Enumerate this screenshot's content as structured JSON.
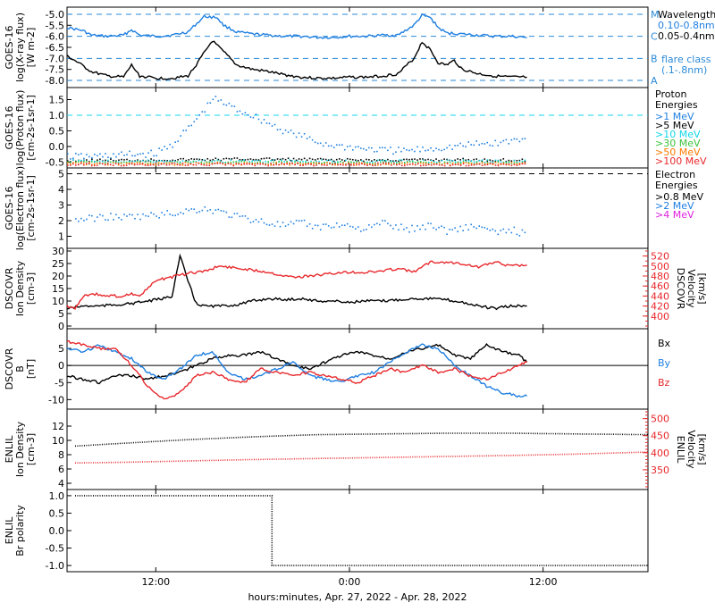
{
  "colors": {
    "black": "#000000",
    "blue": "#1f7fe0",
    "cyan": "#12d6e8",
    "green": "#3cc23c",
    "yellow": "#d7c400",
    "orange": "#ff7a00",
    "red": "#e8282c",
    "magenta": "#e020e0",
    "dashed_blue": "#2a8ad8"
  },
  "x_axis": {
    "label": "hours:minutes, Apr. 27, 2022 - Apr. 28, 2022",
    "ticks": [
      "12:00",
      "0:00",
      "12:00"
    ],
    "range_hours": [
      6.5,
      42.5
    ],
    "tick_hours": [
      12,
      24,
      36
    ]
  },
  "chart_data": [
    {
      "type": "line",
      "panel": "xray",
      "ylabel_lines": [
        "GOES-16",
        "log(X-ray flux)",
        "[W m-2]"
      ],
      "ylim": [
        -8.2,
        -4.8
      ],
      "ytick_labels": [
        "-5.0",
        "-5.5",
        "-6.0",
        "-6.5",
        "-7.0",
        "-7.5",
        "-8.0"
      ],
      "ytick_values": [
        -5.0,
        -5.5,
        -6.0,
        -6.5,
        -7.0,
        -7.5,
        -8.0
      ],
      "flare_levels": [
        {
          "label": "M",
          "value": -5.0
        },
        {
          "label": "C",
          "value": -6.0
        },
        {
          "label": "B",
          "value": -7.0
        },
        {
          "label": "A",
          "value": -8.0
        }
      ],
      "legend_title": "Wavelength",
      "legend_extra": [
        "flare class",
        "(.1-.8nm)"
      ],
      "series": [
        {
          "name": "0.10-0.8nm",
          "color_key": "blue",
          "x": [
            6.5,
            7.5,
            8.0,
            9.0,
            10.0,
            10.5,
            11.0,
            12.0,
            13.0,
            14.0,
            15.0,
            15.8,
            16.2,
            17.0,
            18.0,
            19.0,
            20.0,
            21.0,
            22.0,
            23.0,
            24.0,
            25.0,
            26.0,
            27.0,
            28.0,
            28.5,
            29.0,
            29.5,
            30.0,
            31.0,
            32.0,
            33.0,
            34.0,
            35.0
          ],
          "y": [
            -5.6,
            -5.75,
            -5.95,
            -6.0,
            -5.95,
            -5.7,
            -5.95,
            -6.0,
            -5.95,
            -5.8,
            -5.1,
            -5.15,
            -5.5,
            -5.8,
            -5.9,
            -5.95,
            -6.0,
            -6.0,
            -6.05,
            -6.05,
            -6.0,
            -6.0,
            -5.95,
            -5.95,
            -5.5,
            -5.05,
            -5.15,
            -5.6,
            -5.85,
            -5.9,
            -5.95,
            -6.0,
            -6.0,
            -6.05
          ]
        },
        {
          "name": "0.05-0.4nm",
          "color_key": "black",
          "x": [
            6.5,
            7.0,
            8.0,
            9.0,
            10.0,
            10.5,
            11.0,
            12.0,
            13.0,
            14.0,
            14.5,
            15.5,
            16.2,
            17.0,
            18.0,
            19.0,
            20.0,
            21.0,
            22.0,
            23.0,
            24.0,
            25.0,
            26.0,
            27.0,
            28.0,
            28.5,
            29.0,
            29.5,
            30.0,
            30.5,
            31.0,
            32.0,
            33.0,
            34.0,
            35.0
          ],
          "y": [
            -6.9,
            -7.1,
            -7.6,
            -7.8,
            -7.85,
            -7.3,
            -7.8,
            -7.9,
            -7.9,
            -7.8,
            -7.3,
            -6.2,
            -6.7,
            -7.3,
            -7.5,
            -7.6,
            -7.75,
            -7.85,
            -7.9,
            -7.9,
            -7.85,
            -7.85,
            -7.8,
            -7.7,
            -7.0,
            -6.25,
            -6.6,
            -7.2,
            -7.3,
            -7.1,
            -7.5,
            -7.7,
            -7.8,
            -7.85,
            -7.85
          ]
        }
      ]
    },
    {
      "type": "scatter",
      "panel": "proton",
      "ylabel_lines": [
        "GOES-16",
        "log(Proton flux)",
        "[cm-2s-1sr-1]"
      ],
      "ylim": [
        -0.6,
        1.8
      ],
      "ytick_labels": [
        "1.5",
        "1.0",
        "0.5",
        "0.0",
        "-0.5"
      ],
      "ytick_values": [
        1.5,
        1.0,
        0.5,
        0.0,
        -0.5
      ],
      "dashed_level": 1.0,
      "legend_title_lines": [
        "Proton",
        "Energies"
      ],
      "series": [
        {
          "name": ">1 MeV",
          "color_key": "blue",
          "x": [
            6.5,
            8,
            10,
            12,
            13,
            14,
            15,
            15.5,
            16,
            17,
            18,
            19,
            20,
            21,
            22,
            23,
            24,
            25,
            26,
            27,
            28,
            29,
            30,
            31,
            32,
            33,
            34,
            35
          ],
          "y": [
            -0.3,
            -0.3,
            -0.25,
            -0.2,
            0.1,
            0.6,
            1.2,
            1.55,
            1.45,
            1.2,
            1.0,
            0.75,
            0.5,
            0.35,
            0.15,
            0.05,
            0.0,
            -0.05,
            -0.1,
            -0.12,
            -0.1,
            -0.05,
            0.0,
            0.05,
            0.1,
            0.12,
            0.2,
            0.25
          ]
        },
        {
          "name": ">5 MeV",
          "color_key": "black",
          "x": [
            6.5,
            10,
            14,
            18,
            22,
            26,
            30,
            35
          ],
          "y": [
            -0.42,
            -0.42,
            -0.4,
            -0.38,
            -0.4,
            -0.42,
            -0.4,
            -0.42
          ]
        },
        {
          "name": ">10 MeV",
          "color_key": "cyan",
          "x": [
            6.5,
            35
          ],
          "y": [
            -0.45,
            -0.45
          ]
        },
        {
          "name": ">30 MeV",
          "color_key": "green",
          "x": [
            6.5,
            35
          ],
          "y": [
            -0.5,
            -0.5
          ]
        },
        {
          "name": ">50 MeV",
          "color_key": "orange",
          "x": [
            6.5,
            35
          ],
          "y": [
            -0.53,
            -0.53
          ]
        },
        {
          "name": ">100 MeV",
          "color_key": "red",
          "x": [
            6.5,
            35
          ],
          "y": [
            -0.55,
            -0.55
          ]
        }
      ]
    },
    {
      "type": "scatter",
      "panel": "electron",
      "ylabel_lines": [
        "GOES-16",
        "log(Electron flux)",
        "[cm-2s-1sr-1]"
      ],
      "ylim": [
        0.4,
        5.2
      ],
      "ytick_labels": [
        "5",
        "4",
        "3",
        "2",
        "1"
      ],
      "ytick_values": [
        5,
        4,
        3,
        2,
        1
      ],
      "dashed_level": 5.0,
      "legend_title_lines": [
        "Electron",
        "Energies"
      ],
      "series": [
        {
          "name": ">0.8 MeV",
          "color_key": "black",
          "x": [],
          "y": []
        },
        {
          "name": ">2 MeV",
          "color_key": "blue",
          "x": [
            7,
            8,
            9,
            10,
            11,
            12,
            13,
            14,
            15,
            16,
            17,
            18,
            19,
            20,
            21,
            22,
            23,
            24,
            25,
            26,
            27,
            28,
            29,
            30,
            31,
            32,
            33,
            34,
            35
          ],
          "y": [
            2.1,
            2.2,
            2.3,
            2.25,
            2.3,
            2.4,
            2.5,
            2.7,
            2.8,
            2.6,
            2.3,
            2.1,
            1.9,
            1.7,
            1.9,
            1.6,
            1.8,
            1.7,
            1.5,
            1.9,
            1.6,
            1.5,
            1.8,
            1.4,
            1.6,
            1.7,
            1.2,
            1.5,
            1.1
          ]
        },
        {
          "name": ">4 MeV",
          "color_key": "magenta",
          "x": [],
          "y": []
        }
      ]
    },
    {
      "type": "line",
      "panel": "dscovr_density_speed",
      "ylabel_lines": [
        "DSCOVR",
        "Ion Density",
        "[cm-3]"
      ],
      "ylabel_right_lines": [
        "DSCOVR",
        "Velocity",
        "[km/s]"
      ],
      "ylim": [
        0,
        30
      ],
      "ytick_labels": [
        "30",
        "25",
        "20",
        "15",
        "10",
        "5",
        "0"
      ],
      "ytick_values": [
        30,
        25,
        20,
        15,
        10,
        5,
        0
      ],
      "ylim_right": [
        380,
        530
      ],
      "ytick_right_labels": [
        "520",
        "500",
        "480",
        "460",
        "440",
        "420",
        "400"
      ],
      "ytick_right_values": [
        520,
        500,
        480,
        460,
        440,
        420,
        400
      ],
      "series": [
        {
          "name": "Density",
          "color_key": "black",
          "axis": "left",
          "x": [
            6.5,
            7.5,
            8.5,
            9.5,
            10.5,
            11.5,
            12.5,
            13.0,
            13.5,
            14.0,
            14.5,
            15.0,
            16.0,
            17.0,
            18.0,
            19.0,
            20.0,
            21.0,
            22.0,
            23.0,
            24.0,
            25.0,
            26.0,
            27.0,
            28.0,
            29.0,
            30.0,
            31.0,
            32.0,
            33.0,
            34.0,
            35.0
          ],
          "y": [
            7,
            8,
            8,
            8.5,
            9,
            10,
            11,
            12,
            28,
            18,
            9,
            8,
            8,
            8.5,
            10,
            11,
            10.5,
            11,
            10,
            10,
            9.5,
            10,
            10,
            10.5,
            11,
            11,
            10.5,
            9.5,
            8,
            7,
            8,
            8
          ]
        },
        {
          "name": "Velocity",
          "color_key": "red",
          "axis": "right",
          "x": [
            6.5,
            7.0,
            7.5,
            8.0,
            9.0,
            10.0,
            10.5,
            11.0,
            12.0,
            12.5,
            13.0,
            14.0,
            15.0,
            16.0,
            17.0,
            18.0,
            19.0,
            20.0,
            21.0,
            22.0,
            23.0,
            24.0,
            25.0,
            26.0,
            27.0,
            28.0,
            29.0,
            30.0,
            31.0,
            32.0,
            33.0,
            34.0,
            35.0
          ],
          "y": [
            420,
            415,
            440,
            445,
            440,
            440,
            445,
            440,
            470,
            475,
            478,
            485,
            490,
            500,
            496,
            492,
            488,
            480,
            478,
            482,
            485,
            488,
            487,
            490,
            495,
            488,
            508,
            508,
            505,
            498,
            508,
            500,
            502
          ]
        }
      ]
    },
    {
      "type": "line",
      "panel": "dscovr_bfield",
      "ylabel_lines": [
        "DSCOVR",
        "B",
        "[nT]"
      ],
      "ylim": [
        -12,
        10
      ],
      "ytick_labels": [
        "5",
        "0",
        "-5",
        "-10"
      ],
      "ytick_values": [
        5,
        0,
        -5,
        -10
      ],
      "zero_line": 0,
      "series": [
        {
          "name": "Bx",
          "color_key": "black",
          "x": [
            6.5,
            7.5,
            8.5,
            9.5,
            10.5,
            11.5,
            12.5,
            13.5,
            14.5,
            15.5,
            16.5,
            17.5,
            18.5,
            19.5,
            20.5,
            21.5,
            22.5,
            23.5,
            24.5,
            25.5,
            26.5,
            27.5,
            28.5,
            29.5,
            30.5,
            31.5,
            32.5,
            33.5,
            34.5,
            35.0
          ],
          "y": [
            -3,
            -4,
            -5,
            -3,
            -3,
            -4,
            -3,
            -2,
            0,
            2,
            3,
            3,
            4,
            2,
            0,
            -1,
            1,
            3,
            4,
            3,
            2,
            4,
            5,
            6,
            3,
            2,
            6,
            4,
            3,
            1
          ]
        },
        {
          "name": "By",
          "color_key": "blue",
          "x": [
            6.5,
            7.5,
            8.5,
            9.5,
            10.5,
            11.5,
            12.5,
            13.5,
            14.5,
            15.5,
            16.5,
            17.5,
            18.5,
            19.5,
            20.5,
            21.5,
            22.5,
            23.5,
            24.5,
            25.5,
            26.5,
            27.5,
            28.5,
            29.5,
            30.5,
            31.5,
            32.5,
            33.5,
            34.5,
            35.0
          ],
          "y": [
            5,
            4,
            6,
            4,
            2,
            -2,
            -4,
            -1,
            3,
            4,
            -2,
            -4,
            -3,
            -1,
            1,
            -3,
            -4,
            -5,
            -3,
            -2,
            1,
            4,
            6,
            5,
            0,
            -3,
            -6,
            -8,
            -9,
            -9
          ]
        },
        {
          "name": "Bz",
          "color_key": "red",
          "x": [
            6.5,
            7.5,
            8.5,
            9.5,
            10.5,
            11.5,
            12.5,
            13.5,
            14.5,
            15.5,
            16.5,
            17.5,
            18.5,
            19.5,
            20.5,
            21.5,
            22.5,
            23.5,
            24.5,
            25.5,
            26.5,
            27.5,
            28.5,
            29.5,
            30.5,
            31.5,
            32.5,
            33.5,
            34.5,
            35.0
          ],
          "y": [
            7,
            6,
            5,
            5,
            0,
            -6,
            -10,
            -8,
            -3,
            -2,
            -4,
            -5,
            -1,
            -2,
            -3,
            -2,
            -3,
            -4,
            -5,
            -3,
            -1,
            -2,
            0,
            -2,
            -1,
            -3,
            -4,
            -2,
            0,
            1
          ]
        }
      ]
    },
    {
      "type": "line",
      "panel": "enlil_density_speed",
      "ylabel_lines": [
        "ENLIL",
        "Ion Density",
        "[cm-3]"
      ],
      "ylabel_right_lines": [
        "ENLIL",
        "Velocity",
        "[km/s]"
      ],
      "ylim": [
        3.5,
        14
      ],
      "ytick_labels": [
        "12",
        "10",
        "8",
        "6",
        "4"
      ],
      "ytick_values": [
        12,
        10,
        8,
        6,
        4
      ],
      "ylim_right": [
        300,
        520
      ],
      "ytick_right_labels": [
        "500",
        "450",
        "400",
        "350"
      ],
      "ytick_right_values": [
        500,
        450,
        400,
        350
      ],
      "series": [
        {
          "name": "Density",
          "color_key": "black",
          "axis": "left",
          "x": [
            7,
            10,
            14,
            18,
            22,
            26,
            30,
            34,
            38,
            42.5
          ],
          "y": [
            9.2,
            9.6,
            10.1,
            10.5,
            10.8,
            10.9,
            11.0,
            11.0,
            10.9,
            10.8
          ]
        },
        {
          "name": "Velocity",
          "color_key": "red",
          "axis": "right",
          "x": [
            7,
            10,
            14,
            18,
            22,
            26,
            30,
            34,
            38,
            42.5
          ],
          "y": [
            370,
            372,
            376,
            380,
            383,
            386,
            389,
            392,
            396,
            402
          ]
        }
      ]
    },
    {
      "type": "line",
      "panel": "enlil_polarity",
      "ylabel_lines": [
        "ENLIL",
        "Br polarity"
      ],
      "ylim": [
        -1.1,
        1.1
      ],
      "ytick_labels": [
        "1.0",
        "0.5",
        "0.0",
        "-0.5",
        "-1.0"
      ],
      "ytick_values": [
        1.0,
        0.5,
        0.0,
        -0.5,
        -1.0
      ],
      "series": [
        {
          "name": "Br polarity",
          "color_key": "black",
          "x": [
            7,
            19.2,
            19.2,
            42.5
          ],
          "y": [
            1,
            1,
            -1,
            -1
          ]
        }
      ]
    }
  ]
}
